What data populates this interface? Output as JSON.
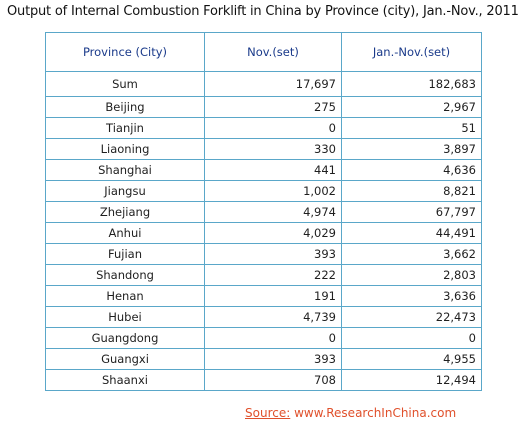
{
  "title": "Output of Internal Combustion Forklift in China by Province (city), Jan.-Nov., 2011",
  "source": {
    "label": "Source:",
    "url": "www.ResearchInChina.com"
  },
  "colors": {
    "border": "#5aa7c9",
    "header_text": "#1a3a8a",
    "source_text": "#e0502b"
  },
  "chart_data": {
    "type": "table",
    "title": "Output of Internal Combustion Forklift in China by Province (city), Jan.-Nov., 2011",
    "columns": [
      "Province (City)",
      "Nov.(set)",
      "Jan.-Nov.(set)"
    ],
    "rows": [
      [
        "Sum",
        "17,697",
        "182,683"
      ],
      [
        "Beijing",
        "275",
        "2,967"
      ],
      [
        "Tianjin",
        "0",
        "51"
      ],
      [
        "Liaoning",
        "330",
        "3,897"
      ],
      [
        "Shanghai",
        "441",
        "4,636"
      ],
      [
        "Jiangsu",
        "1,002",
        "8,821"
      ],
      [
        "Zhejiang",
        "4,974",
        "67,797"
      ],
      [
        "Anhui",
        "4,029",
        "44,491"
      ],
      [
        "Fujian",
        "393",
        "3,662"
      ],
      [
        "Shandong",
        "222",
        "2,803"
      ],
      [
        "Henan",
        "191",
        "3,636"
      ],
      [
        "Hubei",
        "4,739",
        "22,473"
      ],
      [
        "Guangdong",
        "0",
        "0"
      ],
      [
        "Guangxi",
        "393",
        "4,955"
      ],
      [
        "Shaanxi",
        "708",
        "12,494"
      ]
    ]
  }
}
